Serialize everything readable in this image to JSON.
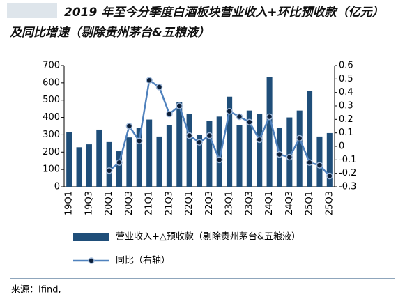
{
  "chart_data": {
    "type": "bar-line",
    "title": "2019 年至今分季度白酒板块营业收入+环比预收款（亿元）及同比增速（剔除贵州茅台&五粮液）",
    "categories": [
      "19Q1",
      null,
      "19Q3",
      null,
      "20Q1",
      null,
      "20Q3",
      null,
      "21Q1",
      null,
      "21Q3",
      null,
      "22Q1",
      null,
      "22Q3",
      null,
      "23Q1",
      null,
      "23Q3",
      null,
      "24Q1",
      null,
      "24Q3",
      null,
      "25Q1",
      null,
      "25Q3"
    ],
    "series": [
      {
        "name": "营业收入+△预收款（剔除贵州茅台&五粮液）",
        "type": "bar",
        "color": "#1f4e79",
        "values": [
          315,
          228,
          245,
          330,
          258,
          205,
          285,
          340,
          388,
          290,
          355,
          490,
          420,
          300,
          380,
          405,
          520,
          358,
          440,
          420,
          635,
          340,
          400,
          440,
          555,
          290,
          310
        ]
      },
      {
        "name": "同比（右轴）",
        "type": "line",
        "axis": "y2",
        "color": "#4f81bd",
        "values": [
          null,
          null,
          null,
          null,
          -0.18,
          -0.12,
          0.15,
          0.04,
          0.49,
          0.44,
          0.24,
          0.3,
          0.08,
          0.03,
          0.08,
          -0.1,
          0.26,
          0.22,
          0.18,
          0.05,
          0.22,
          -0.06,
          -0.08,
          0.06,
          -0.12,
          -0.14,
          -0.22
        ]
      }
    ],
    "ylim": [
      0,
      700
    ],
    "yticks": [
      0,
      100,
      200,
      300,
      400,
      500,
      600,
      700
    ],
    "y2lim": [
      -0.3,
      0.6
    ],
    "y2ticks": [
      -0.3,
      -0.2,
      -0.1,
      0,
      0.1,
      0.2,
      0.3,
      0.4,
      0.5,
      0.6
    ],
    "source": "来源：Ifind,"
  }
}
